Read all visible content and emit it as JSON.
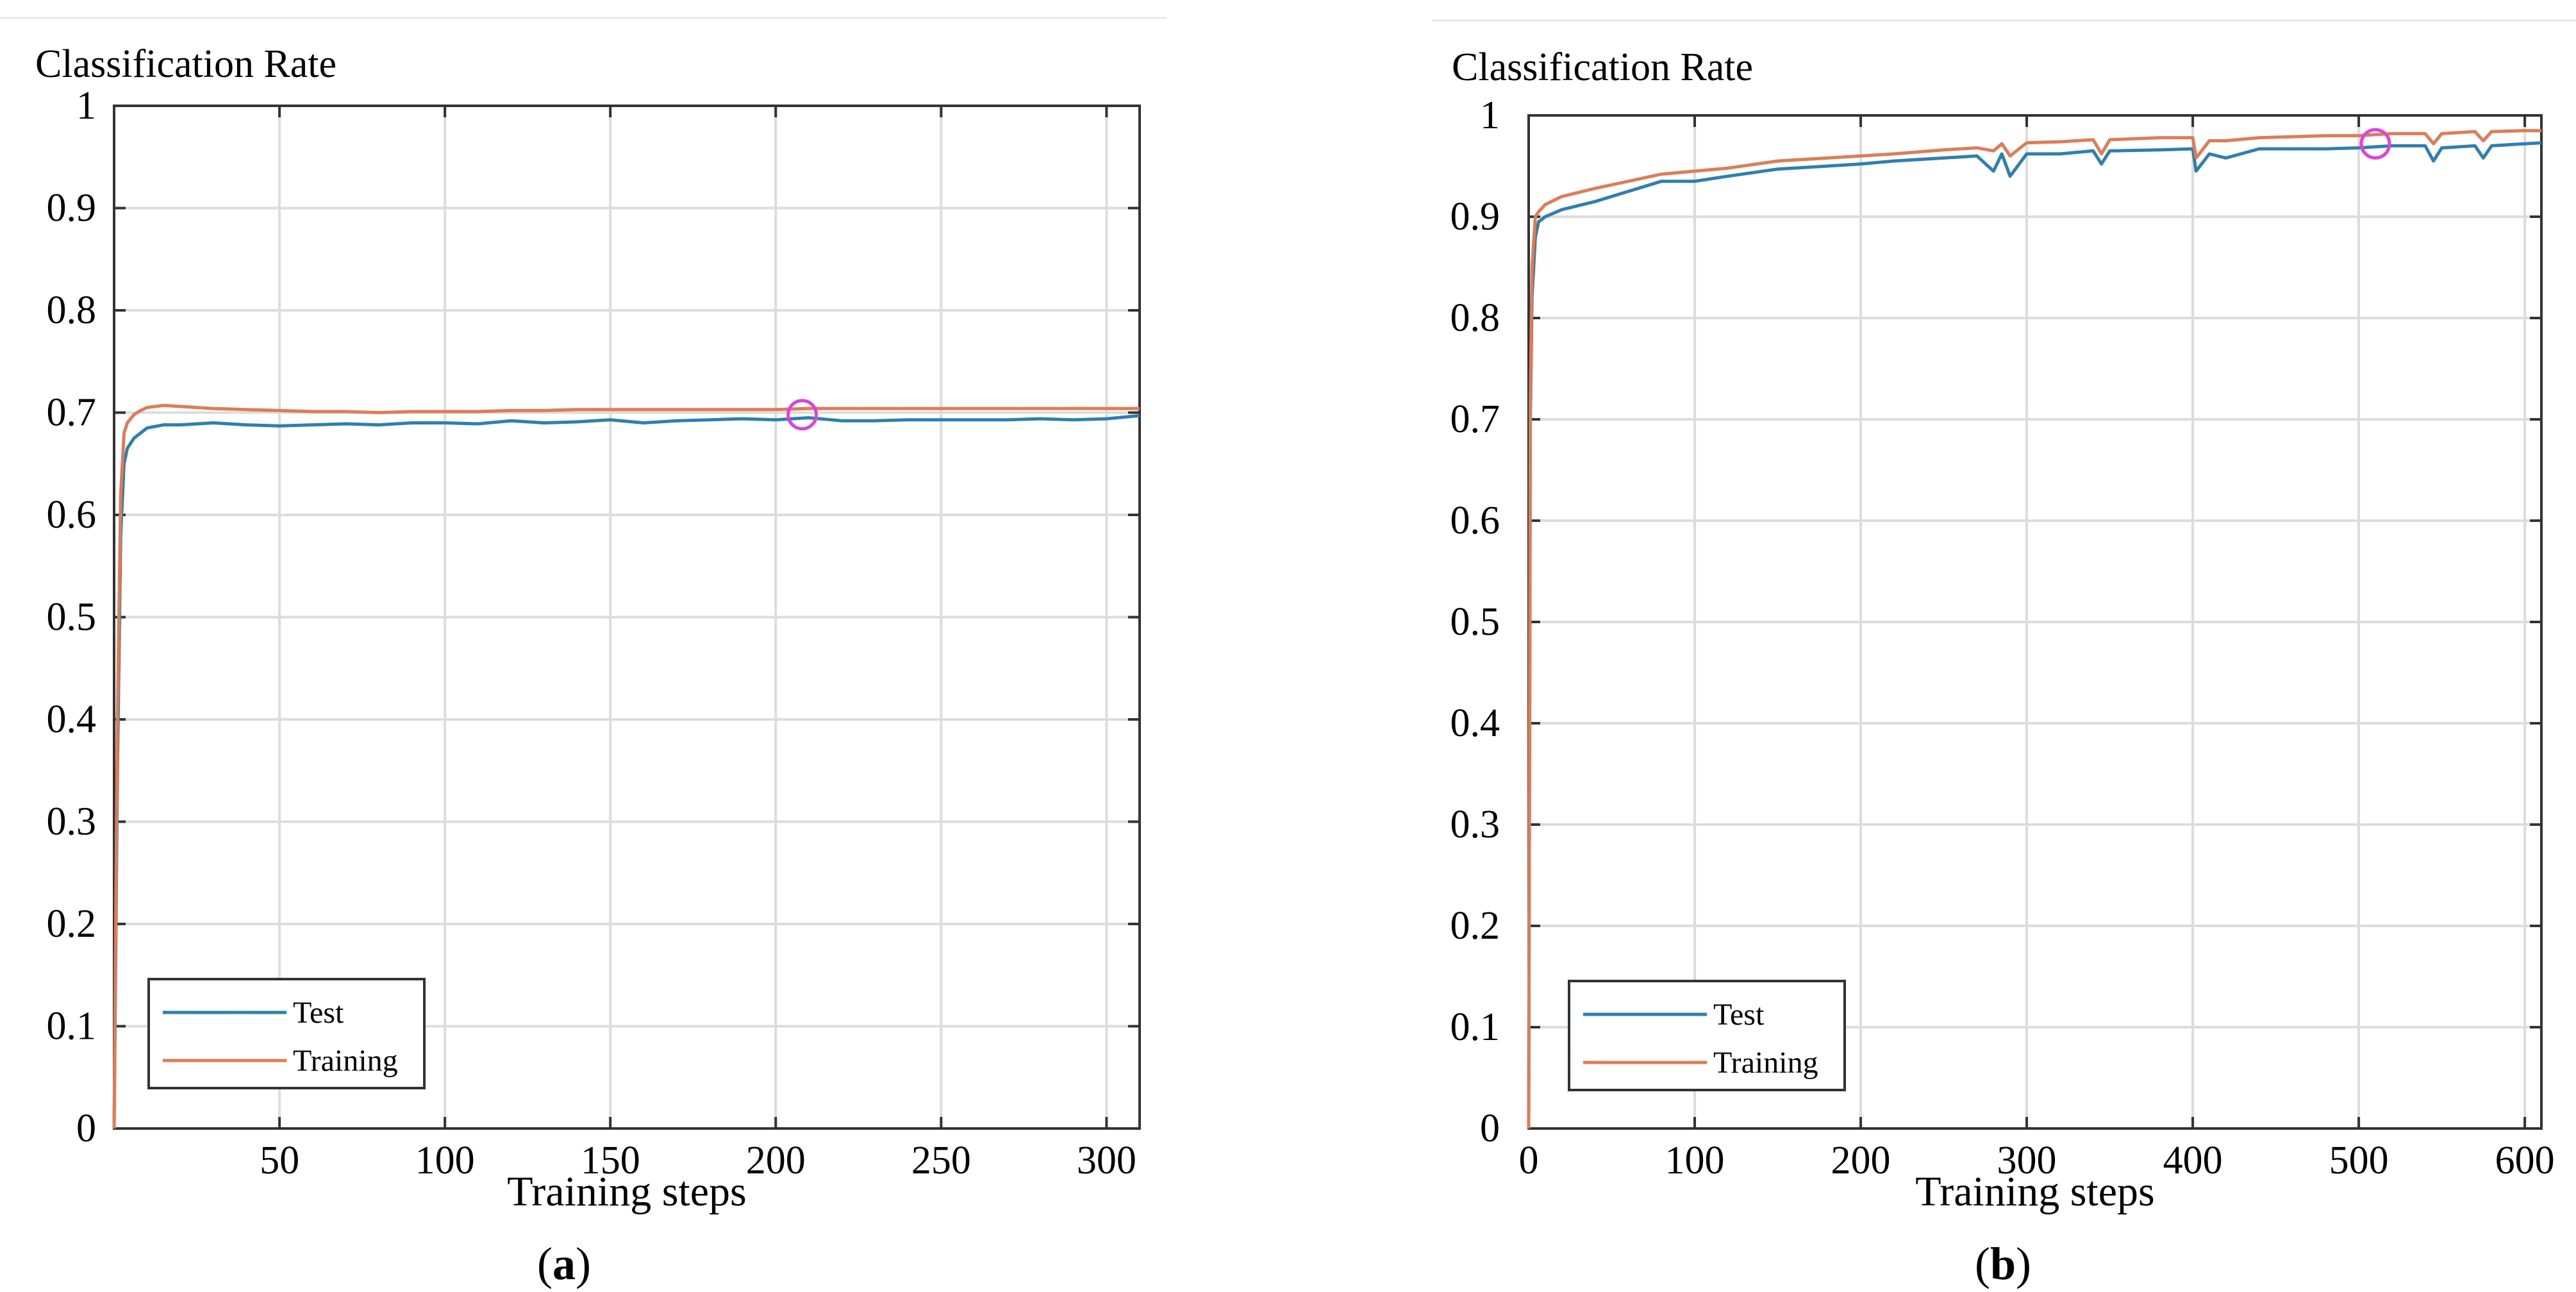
{
  "colors": {
    "test": "#2a7fb5",
    "training": "#e07b54",
    "marker": "#e040e0",
    "axis": "#333333",
    "grid": "#dcdcdc"
  },
  "chart_data": [
    {
      "type": "line",
      "title": "Classification Rate",
      "xlabel": "Training steps",
      "caption_letter": "a",
      "xlim": [
        0,
        310
      ],
      "ylim": [
        0,
        1
      ],
      "xticks": [
        50,
        100,
        150,
        200,
        250,
        300
      ],
      "xtick_labels": [
        "50",
        "100",
        "150",
        "200",
        "250",
        "300"
      ],
      "yticks": [
        0,
        0.1,
        0.2,
        0.3,
        0.4,
        0.5,
        0.6,
        0.7,
        0.8,
        0.9,
        1
      ],
      "ytick_labels": [
        "0",
        "0.1",
        "0.2",
        "0.3",
        "0.4",
        "0.5",
        "0.6",
        "0.7",
        "0.8",
        "0.9",
        "1"
      ],
      "legend_position": "bottom-left",
      "series": [
        {
          "name": "Test",
          "color": "#2a7fb5",
          "x": [
            0,
            1,
            2,
            3,
            4,
            6,
            8,
            10,
            15,
            20,
            30,
            40,
            50,
            60,
            70,
            80,
            90,
            100,
            110,
            120,
            130,
            140,
            150,
            160,
            170,
            180,
            190,
            200,
            210,
            220,
            230,
            240,
            250,
            260,
            270,
            280,
            290,
            300,
            310
          ],
          "y": [
            0,
            0.35,
            0.58,
            0.65,
            0.665,
            0.675,
            0.68,
            0.685,
            0.688,
            0.688,
            0.69,
            0.688,
            0.687,
            0.688,
            0.689,
            0.688,
            0.69,
            0.69,
            0.689,
            0.692,
            0.69,
            0.691,
            0.693,
            0.69,
            0.692,
            0.693,
            0.694,
            0.693,
            0.695,
            0.692,
            0.692,
            0.693,
            0.693,
            0.693,
            0.693,
            0.694,
            0.693,
            0.694,
            0.697
          ]
        },
        {
          "name": "Training",
          "color": "#e07b54",
          "x": [
            0,
            1,
            2,
            3,
            4,
            6,
            8,
            10,
            15,
            20,
            30,
            40,
            50,
            60,
            70,
            80,
            90,
            100,
            110,
            120,
            130,
            140,
            150,
            160,
            170,
            180,
            190,
            200,
            210,
            220,
            230,
            240,
            250,
            260,
            270,
            280,
            290,
            300,
            310
          ],
          "y": [
            0,
            0.4,
            0.62,
            0.68,
            0.69,
            0.698,
            0.702,
            0.705,
            0.707,
            0.706,
            0.704,
            0.703,
            0.702,
            0.701,
            0.701,
            0.7,
            0.701,
            0.701,
            0.701,
            0.702,
            0.702,
            0.703,
            0.703,
            0.703,
            0.703,
            0.703,
            0.703,
            0.703,
            0.704,
            0.704,
            0.704,
            0.704,
            0.704,
            0.704,
            0.704,
            0.704,
            0.704,
            0.704,
            0.704
          ]
        }
      ],
      "marker": {
        "x": 208,
        "y": 0.698
      }
    },
    {
      "type": "line",
      "title": "Classification Rate",
      "xlabel": "Training steps",
      "caption_letter": "b",
      "xlim": [
        0,
        610
      ],
      "ylim": [
        0,
        1
      ],
      "xticks": [
        0,
        100,
        200,
        300,
        400,
        500,
        600
      ],
      "xtick_labels": [
        "0",
        "100",
        "200",
        "300",
        "400",
        "500",
        "600"
      ],
      "yticks": [
        0,
        0.1,
        0.2,
        0.3,
        0.4,
        0.5,
        0.6,
        0.7,
        0.8,
        0.9,
        1
      ],
      "ytick_labels": [
        "0",
        "0.1",
        "0.2",
        "0.3",
        "0.4",
        "0.5",
        "0.6",
        "0.7",
        "0.8",
        "0.9",
        "1"
      ],
      "legend_position": "bottom-left",
      "series": [
        {
          "name": "Test",
          "color": "#2a7fb5",
          "x": [
            0,
            1,
            2,
            4,
            6,
            10,
            20,
            40,
            60,
            80,
            100,
            120,
            150,
            180,
            200,
            220,
            250,
            270,
            280,
            285,
            290,
            300,
            320,
            340,
            345,
            350,
            380,
            400,
            402,
            410,
            420,
            440,
            460,
            480,
            500,
            520,
            540,
            545,
            550,
            570,
            575,
            580,
            600,
            610
          ],
          "y": [
            0,
            0.7,
            0.82,
            0.88,
            0.895,
            0.9,
            0.907,
            0.915,
            0.925,
            0.935,
            0.935,
            0.94,
            0.947,
            0.95,
            0.952,
            0.955,
            0.958,
            0.96,
            0.945,
            0.962,
            0.94,
            0.962,
            0.962,
            0.965,
            0.952,
            0.965,
            0.966,
            0.967,
            0.945,
            0.962,
            0.958,
            0.967,
            0.967,
            0.967,
            0.968,
            0.97,
            0.97,
            0.955,
            0.968,
            0.97,
            0.958,
            0.97,
            0.972,
            0.973
          ]
        },
        {
          "name": "Training",
          "color": "#e07b54",
          "x": [
            0,
            1,
            2,
            4,
            6,
            10,
            20,
            40,
            60,
            80,
            100,
            120,
            150,
            180,
            200,
            220,
            250,
            270,
            280,
            285,
            290,
            300,
            320,
            340,
            345,
            350,
            380,
            400,
            402,
            410,
            420,
            440,
            460,
            480,
            500,
            520,
            540,
            545,
            550,
            570,
            575,
            580,
            600,
            610
          ],
          "y": [
            0,
            0.72,
            0.85,
            0.9,
            0.905,
            0.912,
            0.92,
            0.928,
            0.935,
            0.942,
            0.945,
            0.948,
            0.955,
            0.958,
            0.96,
            0.962,
            0.966,
            0.968,
            0.965,
            0.972,
            0.96,
            0.973,
            0.974,
            0.976,
            0.962,
            0.976,
            0.978,
            0.978,
            0.958,
            0.975,
            0.975,
            0.978,
            0.979,
            0.98,
            0.98,
            0.982,
            0.982,
            0.972,
            0.982,
            0.984,
            0.975,
            0.984,
            0.985,
            0.985
          ]
        }
      ],
      "marker": {
        "x": 510,
        "y": 0.972
      }
    }
  ]
}
